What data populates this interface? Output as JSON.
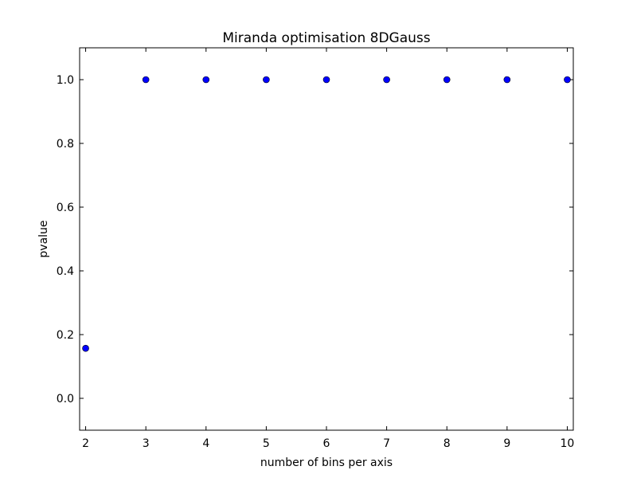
{
  "chart_data": {
    "type": "scatter",
    "title": "Miranda optimisation 8DGauss",
    "xlabel": "number of bins per axis",
    "ylabel": "pvalue",
    "xlim": [
      1.9,
      10.1
    ],
    "ylim": [
      -0.1,
      1.1
    ],
    "x_ticks": [
      "2",
      "3",
      "4",
      "5",
      "6",
      "7",
      "8",
      "9",
      "10"
    ],
    "y_ticks": [
      "0.0",
      "0.2",
      "0.4",
      "0.6",
      "0.8",
      "1.0"
    ],
    "grid": false,
    "marker_color": "#0000ff",
    "series": [
      {
        "x": [
          2,
          3,
          4,
          5,
          6,
          7,
          8,
          9,
          10
        ],
        "y": [
          0.157,
          1.0,
          1.0,
          1.0,
          1.0,
          1.0,
          1.0,
          1.0,
          1.0
        ]
      }
    ]
  }
}
